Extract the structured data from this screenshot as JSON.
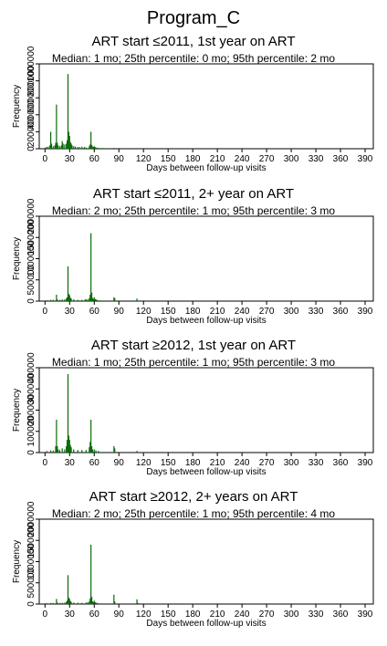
{
  "figure": {
    "title": "Program_C"
  },
  "chart_data": [
    {
      "type": "bar",
      "title": "ART start ≤2011, 1st year on ART",
      "subtitle": "Median: 1 mo; 25th percentile: 0 mo; 95th percentile: 2 mo",
      "xlabel": "Days between follow-up visits",
      "ylabel": "Frequency",
      "xlim": [
        -7,
        400
      ],
      "xticks": [
        0,
        30,
        60,
        90,
        120,
        150,
        180,
        210,
        240,
        270,
        300,
        330,
        360,
        390
      ],
      "ylim": [
        0,
        1000000
      ],
      "yticks": [
        0,
        200000,
        400000,
        600000,
        800000,
        1000000
      ],
      "bar_color": "#0a6b0a",
      "bars": {
        "x": [
          1,
          2,
          4,
          6,
          7,
          8,
          10,
          12,
          13,
          14,
          15,
          16,
          18,
          20,
          21,
          22,
          24,
          26,
          27,
          28,
          29,
          30,
          31,
          32,
          33,
          35,
          37,
          40,
          42,
          45,
          48,
          50,
          54,
          55,
          56,
          57,
          58,
          59,
          60,
          61,
          62,
          63,
          65,
          70,
          75,
          84,
          90
        ],
        "y": [
          15000,
          20000,
          25000,
          40000,
          200000,
          60000,
          30000,
          40000,
          70000,
          520000,
          70000,
          40000,
          30000,
          40000,
          90000,
          60000,
          50000,
          60000,
          100000,
          880000,
          200000,
          150000,
          80000,
          60000,
          40000,
          30000,
          25000,
          20000,
          20000,
          25000,
          20000,
          15000,
          30000,
          50000,
          200000,
          45000,
          25000,
          20000,
          30000,
          20000,
          15000,
          10000,
          10000,
          8000,
          6000,
          10000,
          8000
        ]
      }
    },
    {
      "type": "bar",
      "title": "ART start ≤2011, 2+ year on ART",
      "subtitle": "Median: 2 mo; 25th percentile: 1 mo; 95th percentile: 3 mo",
      "xlabel": "Days between follow-up visits",
      "ylabel": "Frequency",
      "xlim": [
        -7,
        400
      ],
      "xticks": [
        0,
        30,
        60,
        90,
        120,
        150,
        180,
        210,
        240,
        270,
        300,
        330,
        360,
        390
      ],
      "ylim": [
        0,
        2000000
      ],
      "yticks": [
        0,
        500000,
        1000000,
        1500000,
        2000000
      ],
      "bar_color": "#0a6b0a",
      "bars": {
        "x": [
          2,
          7,
          10,
          14,
          15,
          18,
          21,
          24,
          26,
          27,
          28,
          29,
          30,
          31,
          32,
          35,
          40,
          45,
          49,
          50,
          52,
          54,
          55,
          56,
          57,
          58,
          59,
          60,
          61,
          62,
          63,
          65,
          70,
          84,
          85,
          112
        ],
        "y": [
          20000,
          30000,
          30000,
          150000,
          40000,
          30000,
          40000,
          40000,
          60000,
          90000,
          820000,
          170000,
          140000,
          80000,
          60000,
          40000,
          30000,
          30000,
          40000,
          40000,
          40000,
          70000,
          150000,
          1600000,
          200000,
          70000,
          50000,
          90000,
          50000,
          40000,
          30000,
          20000,
          15000,
          90000,
          70000,
          60000
        ]
      }
    },
    {
      "type": "bar",
      "title": "ART start ≥2012, 1st year on ART",
      "subtitle": "Median: 1 mo; 25th percentile: 1 mo; 95th percentile: 3 mo",
      "xlabel": "Days between follow-up visits",
      "ylabel": "Frequency",
      "xlim": [
        -7,
        400
      ],
      "xticks": [
        0,
        30,
        60,
        90,
        120,
        150,
        180,
        210,
        240,
        270,
        300,
        330,
        360,
        390
      ],
      "ylim": [
        0,
        400000
      ],
      "yticks": [
        0,
        100000,
        200000,
        300000,
        400000
      ],
      "bar_color": "#0a6b0a",
      "bars": {
        "x": [
          2,
          7,
          10,
          13,
          14,
          15,
          16,
          18,
          21,
          24,
          26,
          27,
          28,
          29,
          30,
          31,
          32,
          35,
          40,
          45,
          50,
          54,
          55,
          56,
          57,
          58,
          60,
          62,
          65,
          84,
          85,
          112
        ],
        "y": [
          8000,
          10000,
          10000,
          30000,
          155000,
          30000,
          15000,
          12000,
          20000,
          15000,
          30000,
          60000,
          370000,
          80000,
          60000,
          35000,
          25000,
          15000,
          12000,
          12000,
          12000,
          25000,
          50000,
          155000,
          30000,
          15000,
          15000,
          10000,
          8000,
          30000,
          20000,
          8000
        ]
      }
    },
    {
      "type": "bar",
      "title": "ART start ≥2012, 2+ years on ART",
      "subtitle": "Median: 2 mo; 25th percentile: 1 mo; 95th percentile: 4 mo",
      "xlabel": "Days between follow-up visits",
      "ylabel": "Frequency",
      "xlim": [
        -7,
        400
      ],
      "xticks": [
        0,
        30,
        60,
        90,
        120,
        150,
        180,
        210,
        240,
        270,
        300,
        330,
        360,
        390
      ],
      "ylim": [
        0,
        2000000
      ],
      "yticks": [
        0,
        500000,
        1000000,
        1500000,
        2000000
      ],
      "bar_color": "#0a6b0a",
      "bars": {
        "x": [
          2,
          7,
          10,
          14,
          15,
          18,
          21,
          24,
          26,
          27,
          28,
          29,
          30,
          31,
          32,
          35,
          40,
          45,
          50,
          52,
          54,
          55,
          56,
          57,
          58,
          59,
          60,
          61,
          62,
          63,
          65,
          70,
          84,
          85,
          112,
          113,
          168
        ],
        "y": [
          20000,
          25000,
          25000,
          120000,
          35000,
          25000,
          30000,
          35000,
          50000,
          80000,
          680000,
          150000,
          120000,
          70000,
          50000,
          35000,
          30000,
          30000,
          35000,
          40000,
          60000,
          130000,
          1400000,
          170000,
          60000,
          45000,
          80000,
          45000,
          35000,
          25000,
          20000,
          15000,
          220000,
          60000,
          110000,
          30000,
          15000
        ]
      }
    }
  ]
}
